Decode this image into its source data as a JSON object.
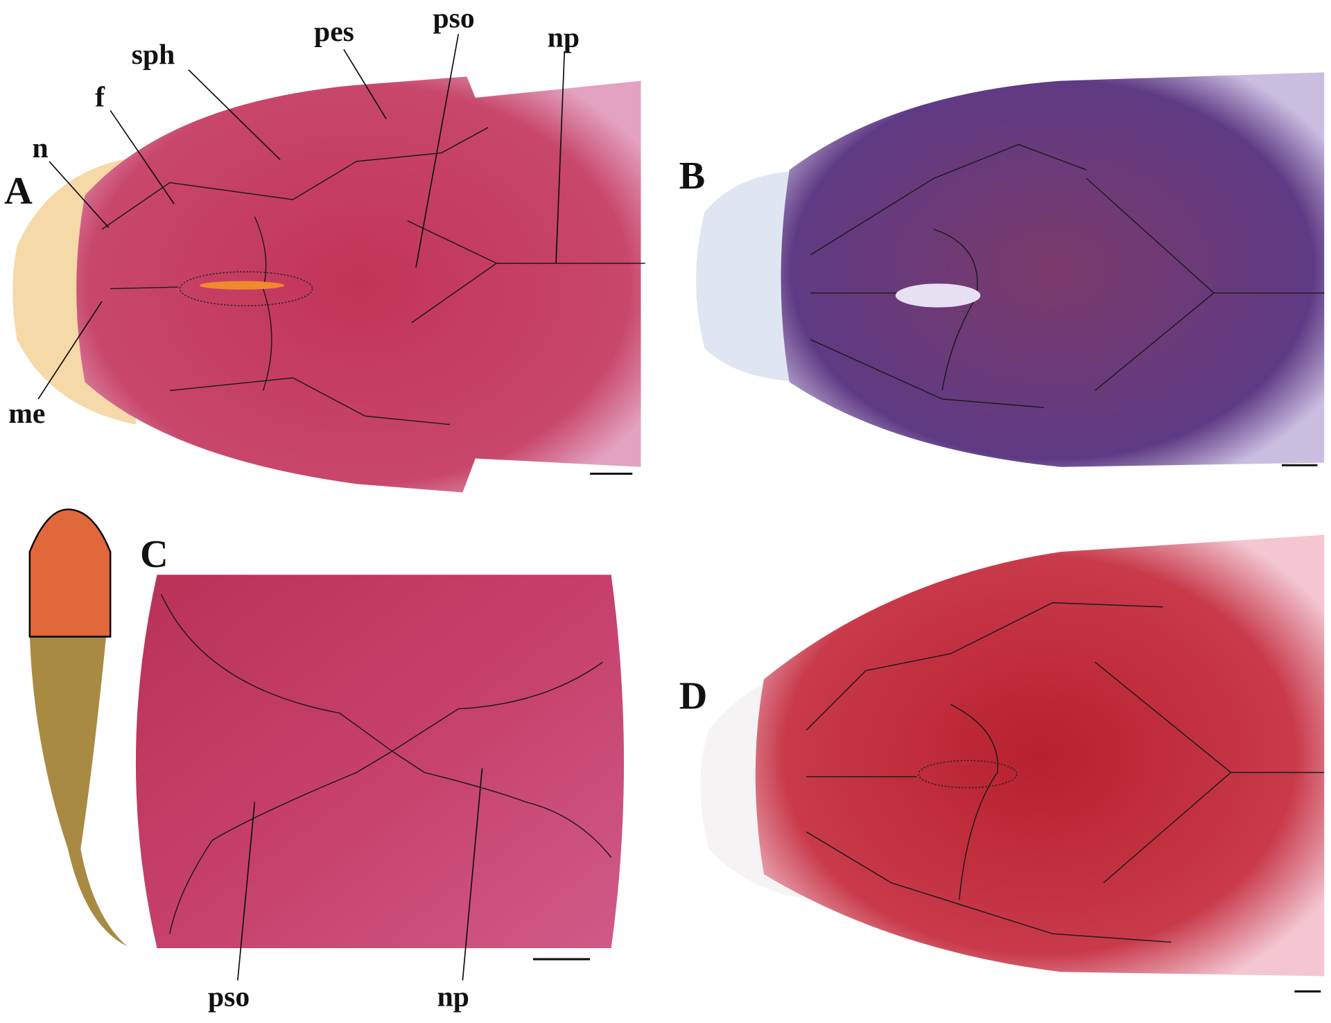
{
  "panels": {
    "A": {
      "letter": "A",
      "labels": {
        "n": "n",
        "f": "f",
        "sph": "sph",
        "pes": "pes",
        "pso": "pso",
        "np": "np",
        "me": "me"
      },
      "stain_color": "#c8365f"
    },
    "B": {
      "letter": "B",
      "stain_color": "#6a3d8a"
    },
    "C": {
      "letter": "C",
      "labels": {
        "pso": "pso",
        "np": "np"
      },
      "stain_color": "#c43a62",
      "inset_fish_color": "#b89a4a",
      "inset_head_color": "#e0683a"
    },
    "D": {
      "letter": "D",
      "stain_color": "#c22a40"
    }
  }
}
